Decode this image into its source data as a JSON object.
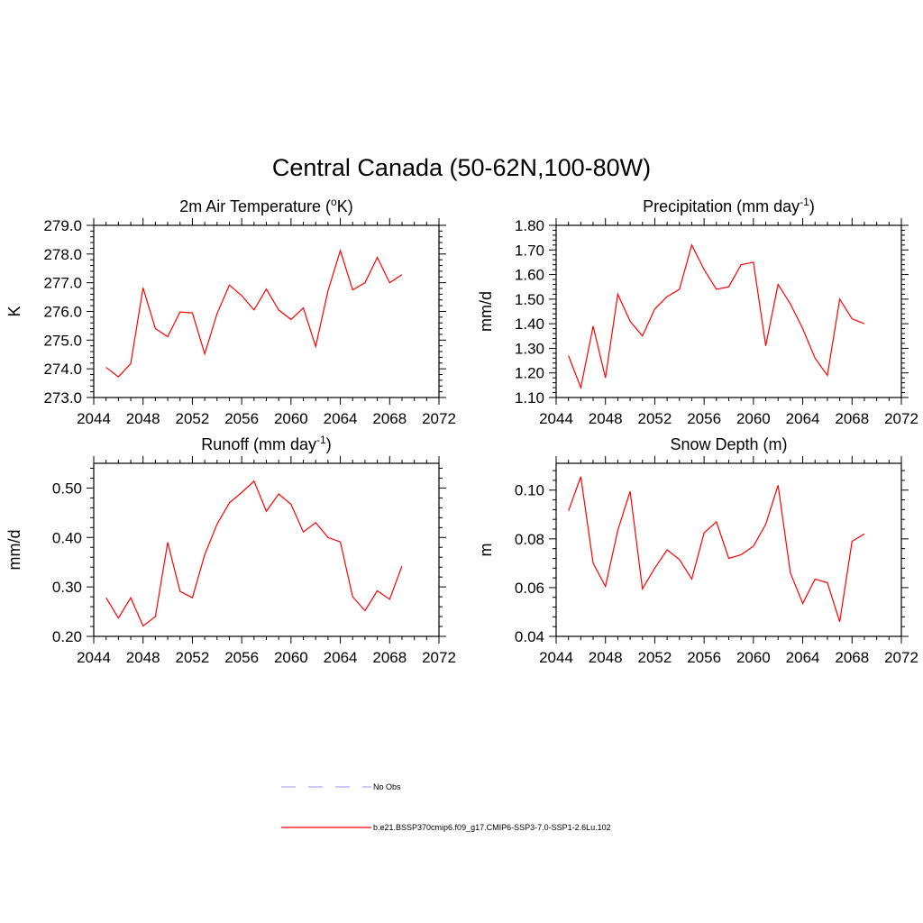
{
  "figure": {
    "title": "Central Canada (50-62N,100-80W)"
  },
  "legend": [
    {
      "label": "No Obs",
      "color": "#aaaaee",
      "dashed": true
    },
    {
      "label": "b.e21.BSSP370cmip6.f09_g17.CMIP6-SSP3-7.0-SSP1-2.6Lu.102",
      "color": "#ff0000",
      "dashed": false
    }
  ],
  "chart_data": [
    {
      "type": "line",
      "title": "2m Air Temperature (",
      "title_sup": "o",
      "title_after": "K)",
      "title_sup2": "",
      "title_end": "",
      "ylabel": "K",
      "xlim": [
        2044,
        2072
      ],
      "ylim": [
        273.0,
        279.0
      ],
      "xticks": [
        2044,
        2048,
        2052,
        2056,
        2060,
        2064,
        2068,
        2072
      ],
      "yticks": [
        "273.0",
        "274.0",
        "275.0",
        "276.0",
        "277.0",
        "278.0",
        "279.0"
      ],
      "yticks_vals": [
        273,
        274,
        275,
        276,
        277,
        278,
        279
      ],
      "series": [
        {
          "color": "#ff0000",
          "x": [
            2045,
            2046,
            2047,
            2048,
            2049,
            2050,
            2051,
            2052,
            2053,
            2054,
            2055,
            2056,
            2057,
            2058,
            2059,
            2060,
            2061,
            2062,
            2063,
            2064,
            2065,
            2066,
            2067,
            2068,
            2069
          ],
          "y": [
            274.05,
            273.72,
            274.18,
            276.82,
            275.4,
            275.12,
            275.98,
            275.95,
            274.52,
            275.92,
            276.92,
            276.55,
            276.05,
            276.78,
            276.05,
            275.72,
            276.12,
            274.78,
            276.72,
            278.12,
            276.75,
            277.0,
            277.88,
            277.0,
            277.28
          ]
        }
      ]
    },
    {
      "type": "line",
      "title": "Precipitation (mm day",
      "title_sup": "-1",
      "title_after": ")",
      "title_sup2": "",
      "title_end": "",
      "ylabel": "mm/d",
      "xlim": [
        2044,
        2072
      ],
      "ylim": [
        1.1,
        1.8
      ],
      "xticks": [
        2044,
        2048,
        2052,
        2056,
        2060,
        2064,
        2068,
        2072
      ],
      "yticks": [
        "1.10",
        "1.20",
        "1.30",
        "1.40",
        "1.50",
        "1.60",
        "1.70",
        "1.80"
      ],
      "yticks_vals": [
        1.1,
        1.2,
        1.3,
        1.4,
        1.5,
        1.6,
        1.7,
        1.8
      ],
      "series": [
        {
          "color": "#ff0000",
          "x": [
            2045,
            2046,
            2047,
            2048,
            2049,
            2050,
            2051,
            2052,
            2053,
            2054,
            2055,
            2056,
            2057,
            2058,
            2059,
            2060,
            2061,
            2062,
            2063,
            2064,
            2065,
            2066,
            2067,
            2068,
            2069
          ],
          "y": [
            1.27,
            1.14,
            1.39,
            1.18,
            1.52,
            1.41,
            1.35,
            1.46,
            1.51,
            1.54,
            1.72,
            1.62,
            1.54,
            1.55,
            1.64,
            1.65,
            1.31,
            1.56,
            1.48,
            1.38,
            1.26,
            1.19,
            1.5,
            1.42,
            1.4
          ]
        }
      ]
    },
    {
      "type": "line",
      "title": "Runoff (mm day",
      "title_sup": "-1",
      "title_after": ")",
      "title_sup2": "",
      "title_end": "",
      "ylabel": "mm/d",
      "xlim": [
        2044,
        2072
      ],
      "ylim": [
        0.2,
        0.55
      ],
      "xticks": [
        2044,
        2048,
        2052,
        2056,
        2060,
        2064,
        2068,
        2072
      ],
      "yticks": [
        "0.20",
        "0.30",
        "0.40",
        "0.50"
      ],
      "yticks_vals": [
        0.2,
        0.3,
        0.4,
        0.5
      ],
      "series": [
        {
          "color": "#ff0000",
          "x": [
            2045,
            2046,
            2047,
            2048,
            2049,
            2050,
            2051,
            2052,
            2053,
            2054,
            2055,
            2056,
            2057,
            2058,
            2059,
            2060,
            2061,
            2062,
            2063,
            2064,
            2065,
            2066,
            2067,
            2068,
            2069
          ],
          "y": [
            0.278,
            0.237,
            0.278,
            0.221,
            0.24,
            0.39,
            0.291,
            0.278,
            0.365,
            0.427,
            0.47,
            0.491,
            0.514,
            0.453,
            0.488,
            0.467,
            0.411,
            0.43,
            0.4,
            0.391,
            0.28,
            0.252,
            0.292,
            0.275,
            0.342
          ]
        }
      ]
    },
    {
      "type": "line",
      "title": "Snow Depth (m)",
      "title_sup": "",
      "title_after": "",
      "title_sup2": "",
      "title_end": "",
      "ylabel": "m",
      "xlim": [
        2044,
        2072
      ],
      "ylim": [
        0.04,
        0.111
      ],
      "xticks": [
        2044,
        2048,
        2052,
        2056,
        2060,
        2064,
        2068,
        2072
      ],
      "yticks": [
        "0.04",
        "0.06",
        "0.08",
        "0.10"
      ],
      "yticks_vals": [
        0.04,
        0.06,
        0.08,
        0.1
      ],
      "series": [
        {
          "color": "#ff0000",
          "x": [
            2045,
            2046,
            2047,
            2048,
            2049,
            2050,
            2051,
            2052,
            2053,
            2054,
            2055,
            2056,
            2057,
            2058,
            2059,
            2060,
            2061,
            2062,
            2063,
            2064,
            2065,
            2066,
            2067,
            2068,
            2069
          ],
          "y": [
            0.0915,
            0.1055,
            0.07,
            0.0605,
            0.0835,
            0.0995,
            0.0595,
            0.068,
            0.0755,
            0.0715,
            0.0635,
            0.0825,
            0.087,
            0.072,
            0.0735,
            0.077,
            0.086,
            0.102,
            0.066,
            0.0535,
            0.0635,
            0.062,
            0.046,
            0.079,
            0.082
          ]
        }
      ]
    }
  ]
}
